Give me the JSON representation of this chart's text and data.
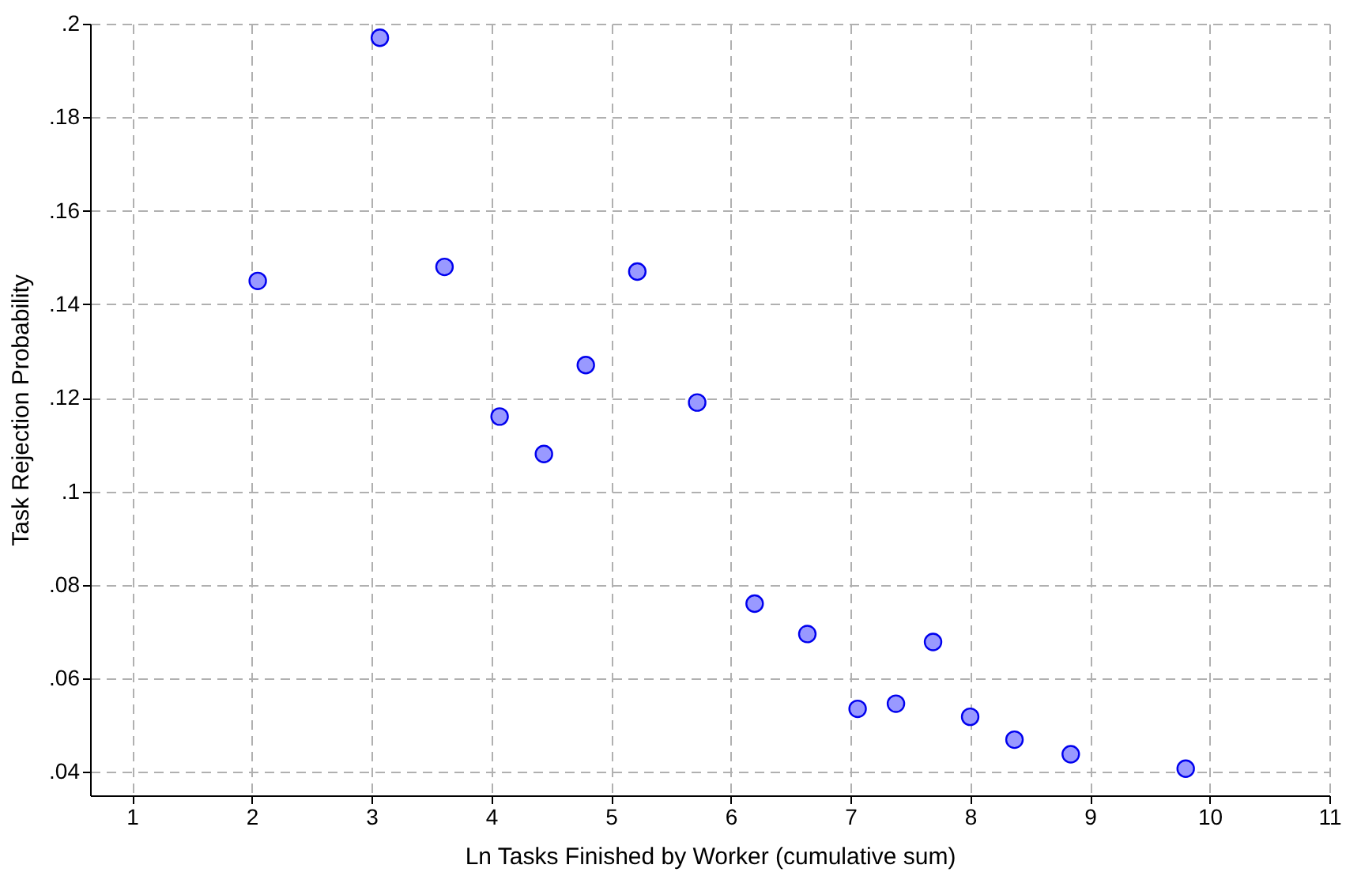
{
  "chart_data": {
    "type": "scatter",
    "xlabel": "Ln Tasks Finished by Worker (cumulative sum)",
    "ylabel": "Task Rejection Probability",
    "x": [
      2.05,
      3.07,
      3.61,
      4.07,
      4.44,
      4.79,
      5.22,
      5.72,
      6.2,
      6.64,
      7.06,
      7.38,
      7.69,
      8.0,
      8.37,
      8.84,
      9.8
    ],
    "series": [
      {
        "color": "#9999ff",
        "values": [
          0.145,
          0.197,
          0.148,
          0.116,
          0.108,
          0.127,
          0.147,
          0.119,
          0.076,
          0.0695,
          0.0535,
          0.0546,
          0.0678,
          0.0518,
          0.0469,
          0.0438,
          0.0407
        ]
      }
    ],
    "xlim": [
      0.65,
      11
    ],
    "xticks": [
      1,
      2,
      3,
      4,
      5,
      6,
      7,
      8,
      9,
      10,
      11
    ],
    "ylim": [
      0.035,
      0.2
    ],
    "yticks": [
      {
        "value": 0.04,
        "label": ".04"
      },
      {
        "value": 0.06,
        "label": ".06"
      },
      {
        "value": 0.08,
        "label": ".08"
      },
      {
        "value": 0.1,
        "label": ".1"
      },
      {
        "value": 0.12,
        "label": ".12"
      },
      {
        "value": 0.14,
        "label": ".14"
      },
      {
        "value": 0.16,
        "label": ".16"
      },
      {
        "value": 0.18,
        "label": ".18"
      },
      {
        "value": 0.2,
        "label": ".2"
      }
    ],
    "grid": true,
    "marker": "circle",
    "line_style": "dashed"
  }
}
